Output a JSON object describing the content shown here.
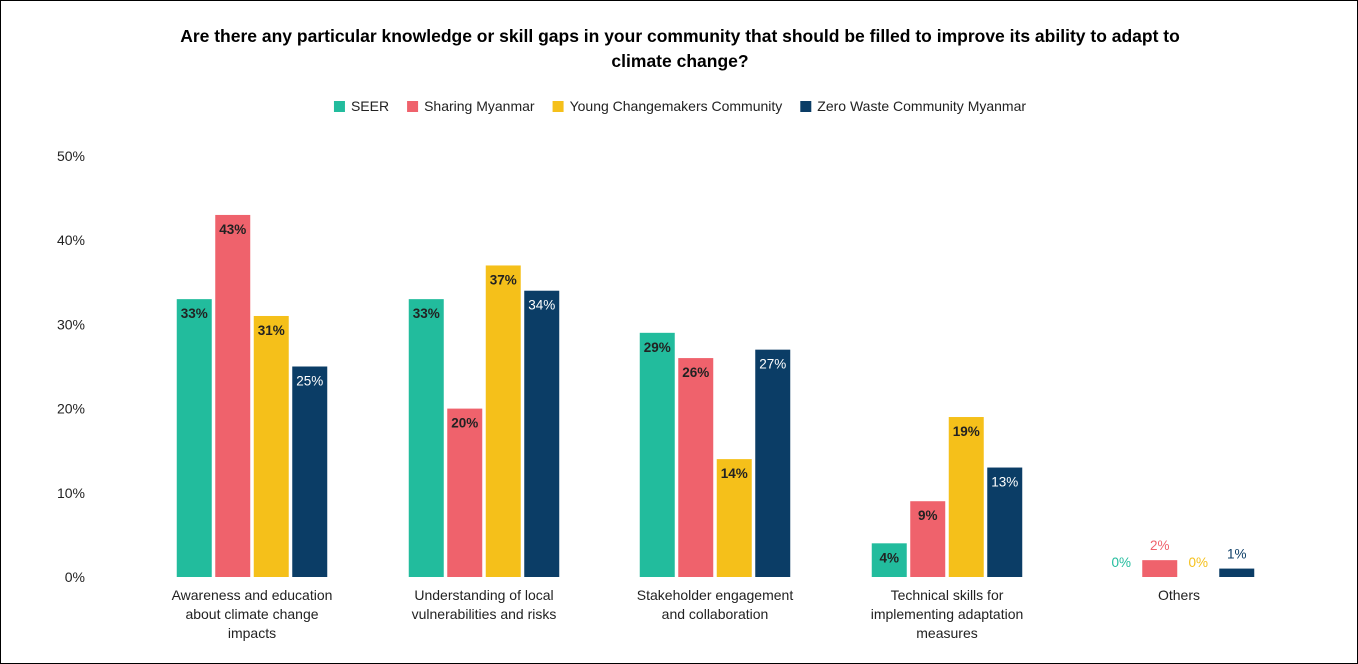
{
  "chart_data": {
    "type": "bar",
    "title_lines": [
      "Are there any particular knowledge or skill gaps in your community that should be filled to improve its ability to adapt to",
      "climate change?"
    ],
    "categories": [
      [
        "Awareness and education",
        "about climate change",
        "impacts"
      ],
      [
        "Understanding of local",
        "vulnerabilities and risks"
      ],
      [
        "Stakeholder engagement",
        "and collaboration"
      ],
      [
        "Technical skills for",
        "implementing adaptation",
        "measures"
      ],
      [
        "Others"
      ]
    ],
    "series": [
      {
        "name": "SEER",
        "color": "#22bc9d",
        "values": [
          33,
          33,
          29,
          4,
          0
        ]
      },
      {
        "name": "Sharing Myanmar",
        "color": "#ef626c",
        "values": [
          43,
          20,
          26,
          9,
          2
        ]
      },
      {
        "name": "Young Changemakers Community",
        "color": "#f5c01a",
        "values": [
          31,
          37,
          14,
          19,
          0
        ]
      },
      {
        "name": "Zero Waste Community Myanmar",
        "color": "#0b3d66",
        "values": [
          25,
          34,
          27,
          13,
          1
        ]
      }
    ],
    "y_ticks": [
      "0%",
      "10%",
      "20%",
      "30%",
      "40%",
      "50%"
    ],
    "ylim": [
      0,
      50
    ],
    "value_suffix": "%",
    "legend_position": "top-center",
    "grid": false
  }
}
